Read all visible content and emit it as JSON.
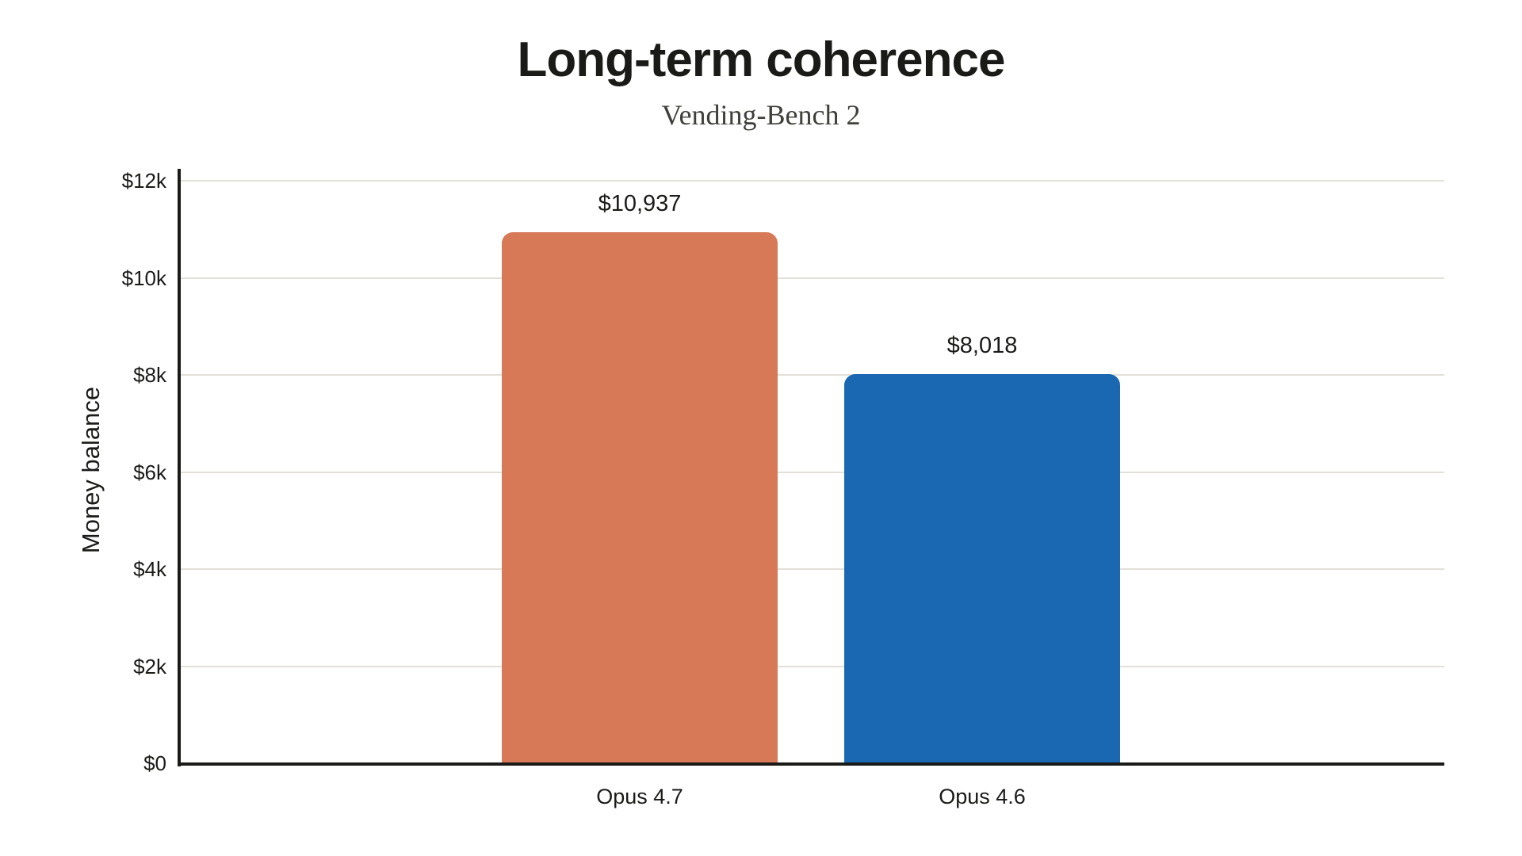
{
  "title": "Long-term coherence",
  "subtitle": "Vending-Bench 2",
  "chart_data": {
    "type": "bar",
    "title": "Long-term coherence",
    "subtitle": "Vending-Bench 2",
    "categories": [
      "Opus 4.7",
      "Opus 4.6"
    ],
    "values": [
      10937,
      8018
    ],
    "value_labels": [
      "$10,937",
      "$8,018"
    ],
    "bar_colors": [
      "#d77957",
      "#1a68b2"
    ],
    "ylabel": "Money balance",
    "xlabel": "",
    "ylim": [
      0,
      12000
    ],
    "yticks": [
      {
        "value": 0,
        "label": "$0"
      },
      {
        "value": 2000,
        "label": "$2k"
      },
      {
        "value": 4000,
        "label": "$4k"
      },
      {
        "value": 6000,
        "label": "$6k"
      },
      {
        "value": 8000,
        "label": "$8k"
      },
      {
        "value": 10000,
        "label": "$10k"
      },
      {
        "value": 12000,
        "label": "$12k"
      }
    ],
    "grid": "horizontal",
    "legend": "none",
    "colors": {
      "axis": "#1a1a18",
      "gridline": "#e3e0d9",
      "text": "#1a1a18",
      "subtitle_text": "#3f3f3b",
      "background": "#ffffff"
    }
  }
}
